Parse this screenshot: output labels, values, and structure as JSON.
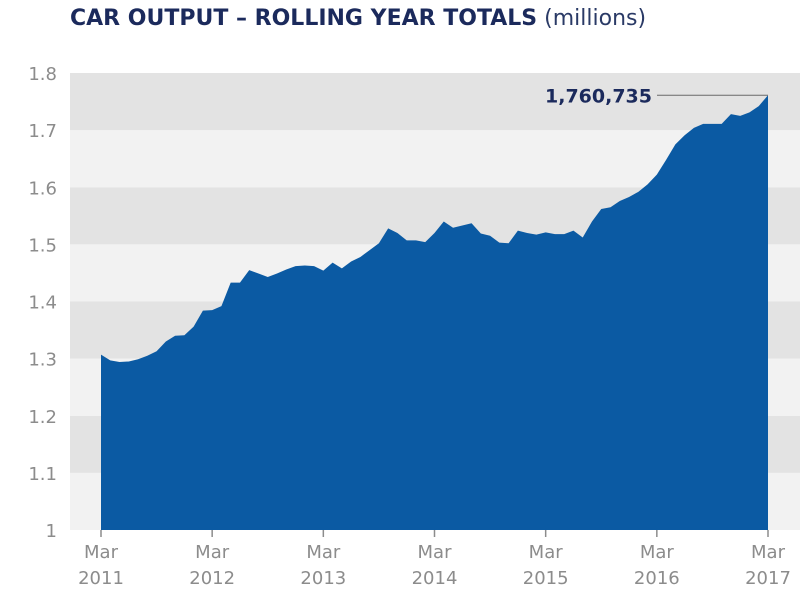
{
  "chart_data": {
    "type": "area",
    "title": "CAR OUTPUT – ROLLING YEAR TOTALS",
    "subtitle": "(millions)",
    "ylim": [
      1.0,
      1.8
    ],
    "yticks": [
      "1",
      "1.1",
      "1.2",
      "1.3",
      "1.4",
      "1.5",
      "1.6",
      "1.7",
      "1.8"
    ],
    "xticks": [
      {
        "label_top": "Mar",
        "label_bottom": "2011",
        "index": 0
      },
      {
        "label_top": "Mar",
        "label_bottom": "2012",
        "index": 12
      },
      {
        "label_top": "Mar",
        "label_bottom": "2013",
        "index": 24
      },
      {
        "label_top": "Mar",
        "label_bottom": "2014",
        "index": 36
      },
      {
        "label_top": "Mar",
        "label_bottom": "2015",
        "index": 48
      },
      {
        "label_top": "Mar",
        "label_bottom": "2016",
        "index": 60
      },
      {
        "label_top": "Mar",
        "label_bottom": "2017",
        "index": 72
      }
    ],
    "annotation": {
      "text": "1,760,735",
      "index": 72
    },
    "series": [
      {
        "values": [
          1.307,
          1.297,
          1.294,
          1.295,
          1.299,
          1.305,
          1.313,
          1.33,
          1.34,
          1.341,
          1.356,
          1.384,
          1.385,
          1.392,
          1.433,
          1.433,
          1.455,
          1.449,
          1.443,
          1.449,
          1.456,
          1.462,
          1.463,
          1.462,
          1.454,
          1.468,
          1.458,
          1.47,
          1.478,
          1.49,
          1.502,
          1.528,
          1.52,
          1.507,
          1.507,
          1.504,
          1.52,
          1.54,
          1.529,
          1.533,
          1.537,
          1.519,
          1.515,
          1.503,
          1.502,
          1.524,
          1.52,
          1.517,
          1.521,
          1.518,
          1.518,
          1.524,
          1.512,
          1.54,
          1.562,
          1.565,
          1.576,
          1.583,
          1.592,
          1.605,
          1.622,
          1.648,
          1.675,
          1.691,
          1.704,
          1.711,
          1.711,
          1.711,
          1.728,
          1.725,
          1.731,
          1.742,
          1.761
        ]
      }
    ],
    "colors": {
      "fill": "#0b5aa3",
      "band": "#e3e3e3",
      "text": "#8c8c8c",
      "title": "#1b2a5c"
    },
    "grid": "alternating horizontal bands"
  }
}
